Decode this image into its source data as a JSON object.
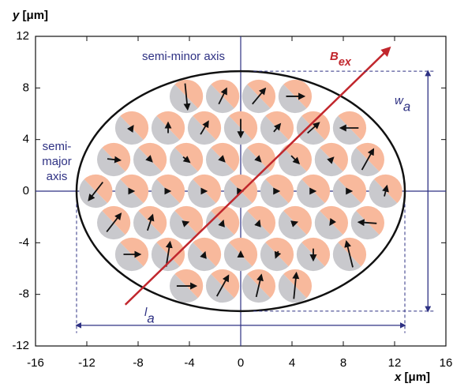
{
  "chart_data": {
    "type": "quiver",
    "x_label": "x",
    "x_unit": "[μm]",
    "y_label": "y",
    "y_unit": "[μm]",
    "xlim": [
      -16,
      16
    ],
    "ylim": [
      -12,
      12
    ],
    "xticks": [
      -16,
      -12,
      -8,
      -4,
      0,
      4,
      8,
      12,
      16
    ],
    "yticks": [
      -12,
      -8,
      -4,
      0,
      4,
      8,
      12
    ],
    "semi_major": 12.8,
    "semi_minor": 9.3,
    "annotations": {
      "semi_minor_label": "semi-minor axis",
      "semi_major_label": [
        "semi-",
        "major",
        "axis"
      ],
      "field": "B",
      "field_sub": "ex",
      "width": "w",
      "width_sub": "a",
      "length": "l",
      "length_sub": "a"
    },
    "field_line": {
      "x": [
        -9,
        11.5
      ],
      "y": [
        -8.8,
        11
      ],
      "color": "#c1272d"
    },
    "disc_radius": 1.3,
    "disc_colors": {
      "up": "#f8b99c",
      "down": "#c9c9cd"
    },
    "discs": {
      "x": [
        -4.24,
        -1.41,
        1.41,
        4.24,
        -8.49,
        -5.66,
        -2.83,
        0,
        2.83,
        5.66,
        8.49,
        -9.9,
        -7.07,
        -4.24,
        -1.41,
        1.41,
        4.24,
        7.07,
        9.9,
        -11.3,
        -8.49,
        -5.66,
        -2.83,
        0,
        2.83,
        5.66,
        8.49,
        11.3,
        -9.9,
        -7.07,
        -4.24,
        -1.41,
        1.41,
        4.24,
        7.07,
        9.9,
        -8.49,
        -5.66,
        -2.83,
        0,
        2.83,
        5.66,
        8.49,
        -4.24,
        -1.41,
        1.41,
        4.24
      ],
      "y": [
        7.35,
        7.35,
        7.35,
        7.35,
        4.9,
        4.9,
        4.9,
        4.9,
        4.9,
        4.9,
        4.9,
        2.45,
        2.45,
        2.45,
        2.45,
        2.45,
        2.45,
        2.45,
        2.45,
        0,
        0,
        0,
        0,
        0,
        0,
        0,
        0,
        0,
        -2.45,
        -2.45,
        -2.45,
        -2.45,
        -2.45,
        -2.45,
        -2.45,
        -2.45,
        -4.9,
        -4.9,
        -4.9,
        -4.9,
        -4.9,
        -4.9,
        -4.9,
        -7.35,
        -7.35,
        -7.35,
        -7.35
      ],
      "mx": [
        0.2,
        0.6,
        1,
        1.4,
        0.2,
        0,
        0.6,
        0,
        0.5,
        0.9,
        -1.4,
        1,
        0.3,
        0.5,
        0.3,
        0.3,
        0.6,
        0.3,
        0.9,
        -1.1,
        0.3,
        0.3,
        0.3,
        0.3,
        0.3,
        0.3,
        0.3,
        0.2,
        1.1,
        0.4,
        0.3,
        0.1,
        0.1,
        0.3,
        -0.2,
        -1.4,
        1.3,
        0.3,
        0.1,
        0,
        -0.2,
        0,
        -0.5,
        1.5,
        0.9,
        0.4,
        0.2
      ],
      "my": [
        -2,
        1.2,
        1.2,
        0,
        0.3,
        0.8,
        1,
        -1.4,
        0.6,
        0.8,
        0,
        -0.1,
        -0.3,
        -0.4,
        -0.3,
        -0.3,
        -0.6,
        0.3,
        1.6,
        -1.4,
        0,
        0,
        0,
        0,
        0,
        0,
        0,
        0.8,
        1.4,
        1.2,
        0.1,
        0.3,
        0.3,
        0.1,
        -0.3,
        0.1,
        0,
        1.9,
        0.3,
        0.4,
        -0.5,
        -0.9,
        2,
        0,
        1.6,
        1.7,
        2
      ]
    },
    "axis_color": "#2e3183"
  }
}
